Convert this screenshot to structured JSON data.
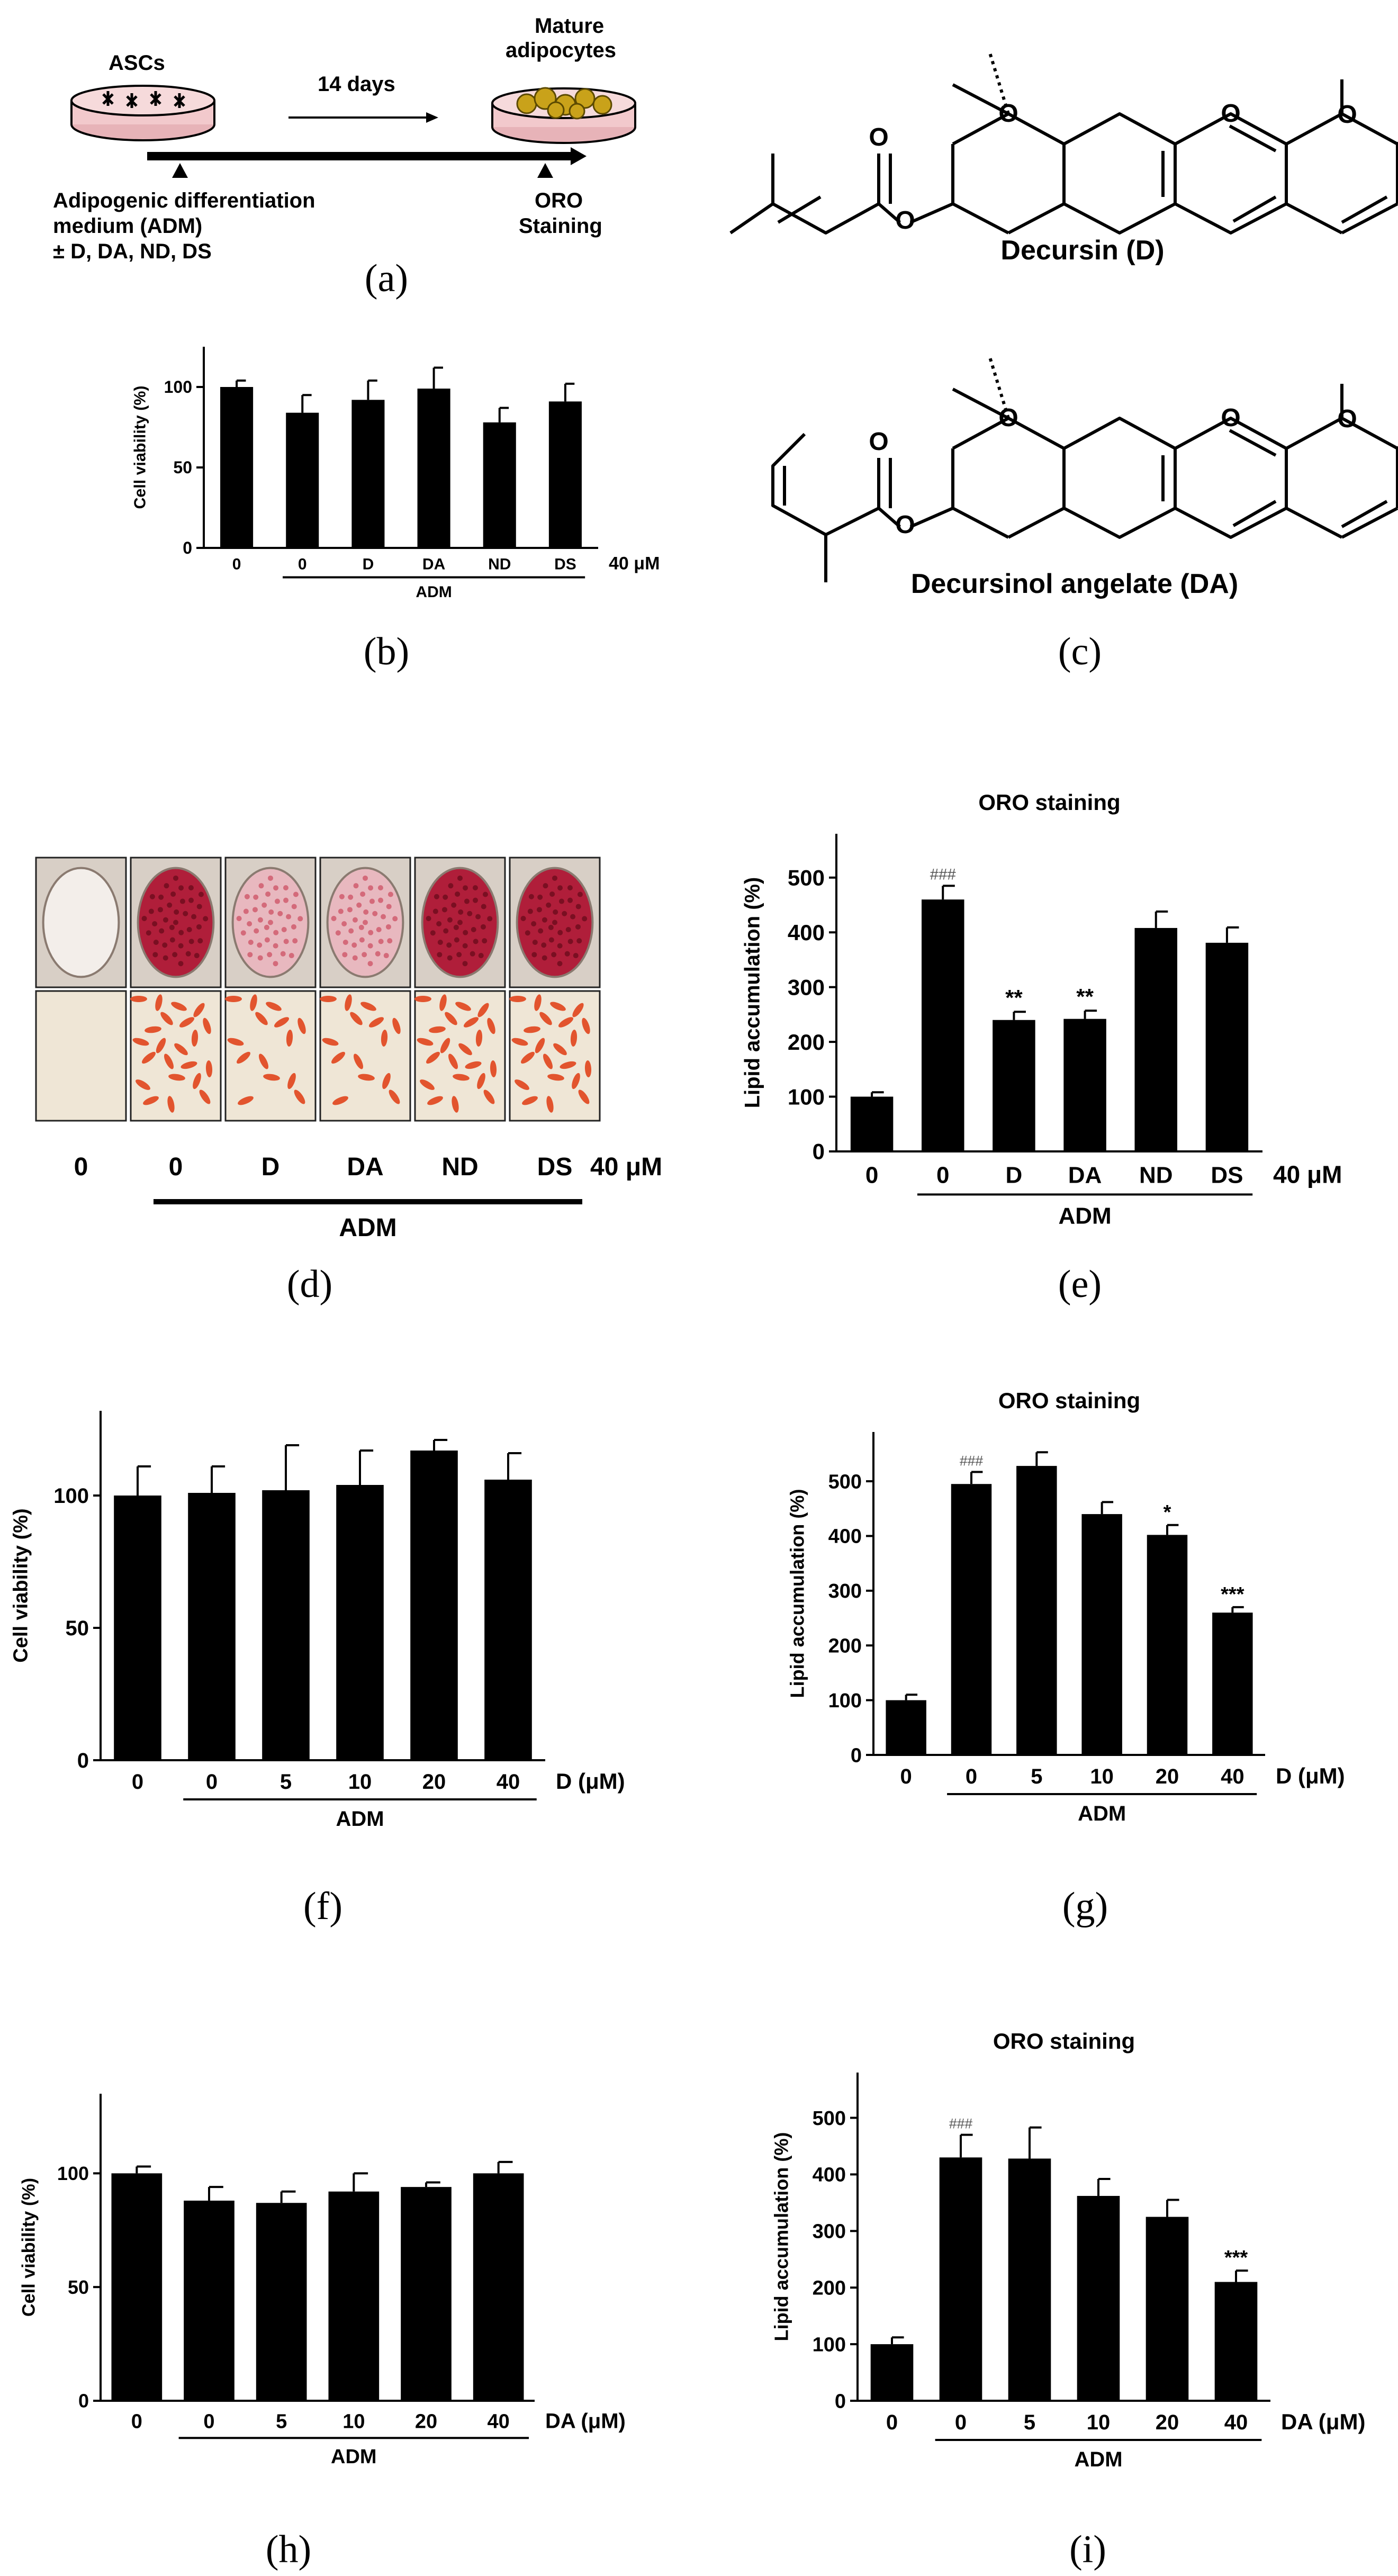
{
  "colors": {
    "bar": "#000000",
    "stain_dark": "#b01e3a",
    "stain_light": "#e8b8bf",
    "cell": "#e2542e",
    "plate_bg": "#efe6d6",
    "drop": "#c9a21a"
  },
  "captions": {
    "a": "(a)",
    "b": "(b)",
    "c": "(c)",
    "d": "(d)",
    "e": "(e)",
    "f": "(f)",
    "g": "(g)",
    "h": "(h)",
    "i": "(i)"
  },
  "schema": {
    "asc_label": "ASCs",
    "mature_label_line1": "Mature",
    "mature_label_line2": "adipocytes",
    "days_label": "14 days",
    "adm_line1": "Adipogenic  differentiation",
    "adm_line2": "medium  (ADM)",
    "adm_line3": "± D, DA, ND, DS",
    "oro_line1": "ORO",
    "oro_line2": "Staining"
  },
  "compounds": {
    "decursin_label": "Decursin (D)",
    "da_label": "Decursinol angelate (DA)"
  },
  "panel_d": {
    "labels": [
      "0",
      "0",
      "D",
      "DA",
      "ND",
      "DS"
    ],
    "unit": "40 μM",
    "group_label": "ADM",
    "well_stain": [
      "none",
      "heavy",
      "light",
      "light",
      "heavy",
      "heavy"
    ]
  },
  "chart_data": [
    {
      "id": "b",
      "type": "bar",
      "categories": [
        "0",
        "0",
        "D",
        "DA",
        "ND",
        "DS"
      ],
      "values": [
        100,
        84,
        92,
        99,
        78,
        91
      ],
      "errors": [
        4,
        11,
        12,
        13,
        9,
        11
      ],
      "ylabel": "Cell viability (%)",
      "ylim": [
        0,
        125
      ],
      "yticks": [
        0,
        50,
        100
      ],
      "unit_label": "40 μM",
      "group_label": "ADM",
      "group_range": [
        1,
        5
      ]
    },
    {
      "id": "e",
      "type": "bar",
      "title": "ORO staining",
      "categories": [
        "0",
        "0",
        "D",
        "DA",
        "ND",
        "DS"
      ],
      "values": [
        100,
        460,
        240,
        242,
        408,
        381
      ],
      "errors": [
        8,
        25,
        15,
        15,
        30,
        28
      ],
      "annotations": [
        "",
        "###",
        "**",
        "**",
        "",
        ""
      ],
      "ylabel": "Lipid accumulation (%)",
      "ylim": [
        0,
        580
      ],
      "yticks": [
        0,
        100,
        200,
        300,
        400,
        500
      ],
      "unit_label": "40 μM",
      "group_label": "ADM",
      "group_range": [
        1,
        5
      ]
    },
    {
      "id": "f",
      "type": "bar",
      "categories": [
        "0",
        "0",
        "5",
        "10",
        "20",
        "40"
      ],
      "values": [
        100,
        101,
        102,
        104,
        117,
        106
      ],
      "errors": [
        11,
        10,
        17,
        13,
        4,
        10
      ],
      "ylabel": "Cell viability (%)",
      "ylim": [
        0,
        132
      ],
      "yticks": [
        0,
        50,
        100
      ],
      "unit_label": "D (μM)",
      "group_label": "ADM",
      "group_range": [
        1,
        5
      ]
    },
    {
      "id": "g",
      "type": "bar",
      "title": "ORO staining",
      "categories": [
        "0",
        "0",
        "5",
        "10",
        "20",
        "40"
      ],
      "values": [
        100,
        495,
        528,
        440,
        402,
        260
      ],
      "errors": [
        10,
        22,
        25,
        22,
        18,
        10
      ],
      "annotations": [
        "",
        "###",
        "",
        "",
        "*",
        "***"
      ],
      "ylabel": "Lipid accumulation (%)",
      "ylim": [
        0,
        590
      ],
      "yticks": [
        0,
        100,
        200,
        300,
        400,
        500
      ],
      "unit_label": "D (μM)",
      "group_label": "ADM",
      "group_range": [
        1,
        5
      ]
    },
    {
      "id": "h",
      "type": "bar",
      "categories": [
        "0",
        "0",
        "5",
        "10",
        "20",
        "40"
      ],
      "values": [
        100,
        88,
        87,
        92,
        94,
        100
      ],
      "errors": [
        3,
        6,
        5,
        8,
        2,
        5
      ],
      "ylabel": "Cell viability (%)",
      "ylim": [
        0,
        135
      ],
      "yticks": [
        0,
        50,
        100
      ],
      "unit_label": "DA (μM)",
      "group_label": "ADM",
      "group_range": [
        1,
        5
      ]
    },
    {
      "id": "i",
      "type": "bar",
      "title": "ORO staining",
      "categories": [
        "0",
        "0",
        "5",
        "10",
        "20",
        "40"
      ],
      "values": [
        100,
        430,
        428,
        362,
        325,
        210
      ],
      "errors": [
        12,
        40,
        55,
        30,
        30,
        20
      ],
      "annotations": [
        "",
        "###",
        "",
        "",
        "",
        "***"
      ],
      "ylabel": "Lipid accumulation (%)",
      "ylim": [
        0,
        580
      ],
      "yticks": [
        0,
        100,
        200,
        300,
        400,
        500
      ],
      "unit_label": "DA (μM)",
      "group_label": "ADM",
      "group_range": [
        1,
        5
      ]
    }
  ]
}
